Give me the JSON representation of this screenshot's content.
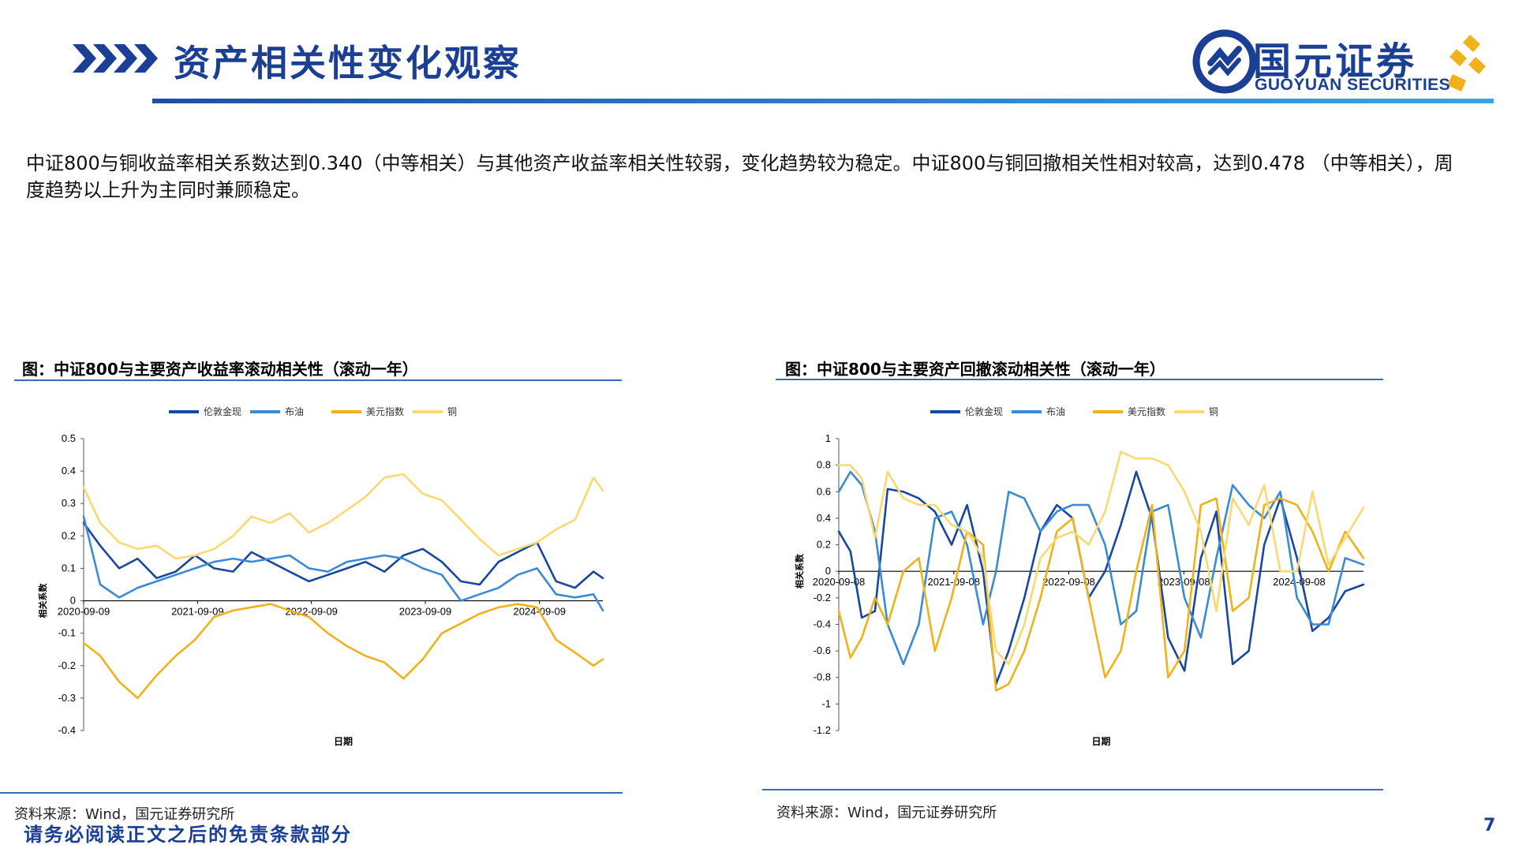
{
  "header": {
    "title": "资产相关性变化观察",
    "logo_cn": "国元证券",
    "logo_en": "GUOYUAN SECURITIES"
  },
  "body_text": "中证800与铜收益率相关系数达到0.340（中等相关）与其他资产收益率相关性较弱，变化趋势较为稳定。中证800与铜回撤相关性相对较高，达到0.478 （中等相关），周度趋势以上升为主同时兼顾稳定。",
  "left_panel": {
    "title": "图：中证800与主要资产收益率滚动相关性（滚动一年）",
    "source": "资料来源：Wind，国元证券研究所"
  },
  "right_panel": {
    "title": "图：中证800与主要资产回撤滚动相关性（滚动一年）",
    "source": "资料来源：Wind，国元证券研究所"
  },
  "footer": {
    "disclaimer": "请务必阅读正文之后的免责条款部分",
    "page_number": "7"
  },
  "colors": {
    "brand": "#1b3f94",
    "series": [
      "#17479e",
      "#3a8ad4",
      "#f0b21a",
      "#fad872"
    ]
  },
  "chart_data": [
    {
      "type": "line",
      "xlabel": "日期",
      "ylabel": "相关系数",
      "ylim": [
        -0.4,
        0.5
      ],
      "yticks": [
        "0.5",
        "0.4",
        "0.3",
        "0.2",
        "0.1",
        "0",
        "-0.1",
        "-0.2",
        "-0.3",
        "-0.4"
      ],
      "ytick_values": [
        0.5,
        0.4,
        0.3,
        0.2,
        0.1,
        0,
        -0.1,
        -0.2,
        -0.3,
        -0.4
      ],
      "xlim": [
        "2020-09-09",
        "2025-03-31"
      ],
      "xticks": [
        "2020-09-09",
        "2021-09-09",
        "2022-09-09",
        "2023-09-09",
        "2024-09-09"
      ],
      "legend_position": "top",
      "grid": false,
      "series": [
        {
          "name": "伦敦金现",
          "color": "#17479e",
          "x": [
            "2020-09-09",
            "2020-11-01",
            "2021-01-01",
            "2021-03-01",
            "2021-05-01",
            "2021-07-01",
            "2021-09-01",
            "2021-11-01",
            "2022-01-01",
            "2022-03-01",
            "2022-05-01",
            "2022-07-01",
            "2022-09-01",
            "2022-11-01",
            "2023-01-01",
            "2023-03-01",
            "2023-05-01",
            "2023-07-01",
            "2023-09-01",
            "2023-11-01",
            "2024-01-01",
            "2024-03-01",
            "2024-05-01",
            "2024-07-01",
            "2024-09-01",
            "2024-11-01",
            "2025-01-01",
            "2025-03-01",
            "2025-03-31"
          ],
          "y": [
            0.24,
            0.17,
            0.1,
            0.13,
            0.07,
            0.09,
            0.14,
            0.1,
            0.09,
            0.15,
            0.12,
            0.09,
            0.06,
            0.08,
            0.1,
            0.12,
            0.09,
            0.14,
            0.16,
            0.12,
            0.06,
            0.05,
            0.12,
            0.15,
            0.18,
            0.06,
            0.04,
            0.09,
            0.07
          ]
        },
        {
          "name": "布油",
          "color": "#3a8ad4",
          "x": [
            "2020-09-09",
            "2020-11-01",
            "2021-01-01",
            "2021-03-01",
            "2021-05-01",
            "2021-07-01",
            "2021-09-01",
            "2021-11-01",
            "2022-01-01",
            "2022-03-01",
            "2022-05-01",
            "2022-07-01",
            "2022-09-01",
            "2022-11-01",
            "2023-01-01",
            "2023-03-01",
            "2023-05-01",
            "2023-07-01",
            "2023-09-01",
            "2023-11-01",
            "2024-01-01",
            "2024-03-01",
            "2024-05-01",
            "2024-07-01",
            "2024-09-01",
            "2024-11-01",
            "2025-01-01",
            "2025-03-01",
            "2025-03-31"
          ],
          "y": [
            0.26,
            0.05,
            0.01,
            0.04,
            0.06,
            0.08,
            0.1,
            0.12,
            0.13,
            0.12,
            0.13,
            0.14,
            0.1,
            0.09,
            0.12,
            0.13,
            0.14,
            0.13,
            0.1,
            0.08,
            0.0,
            0.02,
            0.04,
            0.08,
            0.1,
            0.02,
            0.01,
            0.02,
            -0.03
          ]
        },
        {
          "name": "美元指数",
          "color": "#f0b21a",
          "x": [
            "2020-09-09",
            "2020-11-01",
            "2021-01-01",
            "2021-03-01",
            "2021-05-01",
            "2021-07-01",
            "2021-09-01",
            "2021-11-01",
            "2022-01-01",
            "2022-03-01",
            "2022-05-01",
            "2022-07-01",
            "2022-09-01",
            "2022-11-01",
            "2023-01-01",
            "2023-03-01",
            "2023-05-01",
            "2023-07-01",
            "2023-09-01",
            "2023-11-01",
            "2024-01-01",
            "2024-03-01",
            "2024-05-01",
            "2024-07-01",
            "2024-09-01",
            "2024-11-01",
            "2025-01-01",
            "2025-03-01",
            "2025-03-31"
          ],
          "y": [
            -0.13,
            -0.17,
            -0.25,
            -0.3,
            -0.23,
            -0.17,
            -0.12,
            -0.05,
            -0.03,
            -0.02,
            -0.01,
            -0.03,
            -0.05,
            -0.1,
            -0.14,
            -0.17,
            -0.19,
            -0.24,
            -0.18,
            -0.1,
            -0.07,
            -0.04,
            -0.02,
            -0.01,
            -0.02,
            -0.12,
            -0.16,
            -0.2,
            -0.18
          ]
        },
        {
          "name": "铜",
          "color": "#fad872",
          "x": [
            "2020-09-09",
            "2020-11-01",
            "2021-01-01",
            "2021-03-01",
            "2021-05-01",
            "2021-07-01",
            "2021-09-01",
            "2021-11-01",
            "2022-01-01",
            "2022-03-01",
            "2022-05-01",
            "2022-07-01",
            "2022-09-01",
            "2022-11-01",
            "2023-01-01",
            "2023-03-01",
            "2023-05-01",
            "2023-07-01",
            "2023-09-01",
            "2023-11-01",
            "2024-01-01",
            "2024-03-01",
            "2024-05-01",
            "2024-07-01",
            "2024-09-01",
            "2024-11-01",
            "2025-01-01",
            "2025-03-01",
            "2025-03-31"
          ],
          "y": [
            0.35,
            0.24,
            0.18,
            0.16,
            0.17,
            0.13,
            0.14,
            0.16,
            0.2,
            0.26,
            0.24,
            0.27,
            0.21,
            0.24,
            0.28,
            0.32,
            0.38,
            0.39,
            0.33,
            0.31,
            0.25,
            0.19,
            0.14,
            0.16,
            0.18,
            0.22,
            0.25,
            0.38,
            0.34
          ]
        }
      ]
    },
    {
      "type": "line",
      "xlabel": "日期",
      "ylabel": "相关系数",
      "ylim": [
        -1.2,
        1.0
      ],
      "yticks": [
        "1",
        "0.8",
        "0.6",
        "0.4",
        "0.2",
        "0",
        "-0.2",
        "-0.4",
        "-0.6",
        "-0.8",
        "-1",
        "-1.2"
      ],
      "ytick_values": [
        1,
        0.8,
        0.6,
        0.4,
        0.2,
        0,
        -0.2,
        -0.4,
        -0.6,
        -0.8,
        -1,
        -1.2
      ],
      "xlim": [
        "2020-09-08",
        "2025-03-31"
      ],
      "xticks": [
        "2020-09-08",
        "2021-09-08",
        "2022-09-08",
        "2023-09-08",
        "2024-09-08"
      ],
      "legend_position": "top",
      "grid": false,
      "series": [
        {
          "name": "伦敦金现",
          "color": "#17479e",
          "x": [
            "2020-09-08",
            "2020-10-15",
            "2020-11-20",
            "2021-01-01",
            "2021-02-10",
            "2021-04-01",
            "2021-05-20",
            "2021-07-10",
            "2021-09-01",
            "2021-10-20",
            "2021-12-10",
            "2022-01-20",
            "2022-03-01",
            "2022-04-20",
            "2022-06-10",
            "2022-08-01",
            "2022-09-20",
            "2022-11-10",
            "2023-01-01",
            "2023-02-20",
            "2023-04-10",
            "2023-05-30",
            "2023-07-20",
            "2023-09-10",
            "2023-11-01",
            "2023-12-20",
            "2024-02-10",
            "2024-04-01",
            "2024-05-20",
            "2024-07-10",
            "2024-09-01",
            "2024-10-20",
            "2024-12-10",
            "2025-02-01",
            "2025-03-31"
          ],
          "y": [
            0.3,
            0.15,
            -0.35,
            -0.3,
            0.62,
            0.6,
            0.55,
            0.45,
            0.2,
            0.5,
            0.0,
            -0.85,
            -0.6,
            -0.2,
            0.3,
            0.5,
            0.4,
            -0.2,
            0.0,
            0.35,
            0.75,
            0.4,
            -0.5,
            -0.75,
            0.1,
            0.45,
            -0.7,
            -0.6,
            0.2,
            0.55,
            0.1,
            -0.45,
            -0.35,
            -0.15,
            -0.1
          ]
        },
        {
          "name": "布油",
          "color": "#3a8ad4",
          "x": [
            "2020-09-08",
            "2020-10-15",
            "2020-11-20",
            "2021-01-01",
            "2021-02-10",
            "2021-04-01",
            "2021-05-20",
            "2021-07-10",
            "2021-09-01",
            "2021-10-20",
            "2021-12-10",
            "2022-01-20",
            "2022-03-01",
            "2022-04-20",
            "2022-06-10",
            "2022-08-01",
            "2022-09-20",
            "2022-11-10",
            "2023-01-01",
            "2023-02-20",
            "2023-04-10",
            "2023-05-30",
            "2023-07-20",
            "2023-09-10",
            "2023-11-01",
            "2023-12-20",
            "2024-02-10",
            "2024-04-01",
            "2024-05-20",
            "2024-07-10",
            "2024-09-01",
            "2024-10-20",
            "2024-12-10",
            "2025-02-01",
            "2025-03-31"
          ],
          "y": [
            0.6,
            0.75,
            0.65,
            0.3,
            -0.4,
            -0.7,
            -0.4,
            0.4,
            0.45,
            0.2,
            -0.4,
            0.0,
            0.6,
            0.55,
            0.3,
            0.45,
            0.5,
            0.5,
            0.2,
            -0.4,
            -0.3,
            0.45,
            0.5,
            -0.2,
            -0.5,
            0.1,
            0.65,
            0.5,
            0.4,
            0.6,
            -0.2,
            -0.4,
            -0.4,
            0.1,
            0.05
          ]
        },
        {
          "name": "美元指数",
          "color": "#f0b21a",
          "x": [
            "2020-09-08",
            "2020-10-15",
            "2020-11-20",
            "2021-01-01",
            "2021-02-10",
            "2021-04-01",
            "2021-05-20",
            "2021-07-10",
            "2021-09-01",
            "2021-10-20",
            "2021-12-10",
            "2022-01-20",
            "2022-03-01",
            "2022-04-20",
            "2022-06-10",
            "2022-08-01",
            "2022-09-20",
            "2022-11-10",
            "2023-01-01",
            "2023-02-20",
            "2023-04-10",
            "2023-05-30",
            "2023-07-20",
            "2023-09-10",
            "2023-11-01",
            "2023-12-20",
            "2024-02-10",
            "2024-04-01",
            "2024-05-20",
            "2024-07-10",
            "2024-09-01",
            "2024-10-20",
            "2024-12-10",
            "2025-02-01",
            "2025-03-31"
          ],
          "y": [
            -0.3,
            -0.65,
            -0.5,
            -0.2,
            -0.4,
            0.0,
            0.1,
            -0.6,
            -0.2,
            0.3,
            0.2,
            -0.9,
            -0.85,
            -0.6,
            -0.2,
            0.3,
            0.4,
            -0.2,
            -0.8,
            -0.6,
            0.0,
            0.5,
            -0.8,
            -0.6,
            0.5,
            0.55,
            -0.3,
            -0.2,
            0.5,
            0.55,
            0.5,
            0.3,
            0.0,
            0.3,
            0.1
          ]
        },
        {
          "name": "铜",
          "color": "#fad872",
          "x": [
            "2020-09-08",
            "2020-10-15",
            "2020-11-20",
            "2021-01-01",
            "2021-02-10",
            "2021-04-01",
            "2021-05-20",
            "2021-07-10",
            "2021-09-01",
            "2021-10-20",
            "2021-12-10",
            "2022-01-20",
            "2022-03-01",
            "2022-04-20",
            "2022-06-10",
            "2022-08-01",
            "2022-09-20",
            "2022-11-10",
            "2023-01-01",
            "2023-02-20",
            "2023-04-10",
            "2023-05-30",
            "2023-07-20",
            "2023-09-10",
            "2023-11-01",
            "2023-12-20",
            "2024-02-10",
            "2024-04-01",
            "2024-05-20",
            "2024-07-10",
            "2024-09-01",
            "2024-10-20",
            "2024-12-10",
            "2025-02-01",
            "2025-03-31"
          ],
          "y": [
            0.8,
            0.8,
            0.7,
            0.25,
            0.75,
            0.55,
            0.5,
            0.5,
            0.35,
            0.3,
            0.1,
            -0.6,
            -0.7,
            -0.4,
            0.1,
            0.25,
            0.3,
            0.2,
            0.45,
            0.9,
            0.85,
            0.85,
            0.8,
            0.6,
            0.3,
            -0.3,
            0.55,
            0.35,
            0.65,
            0.0,
            0.0,
            0.6,
            0.05,
            0.25,
            0.48
          ]
        }
      ]
    }
  ]
}
